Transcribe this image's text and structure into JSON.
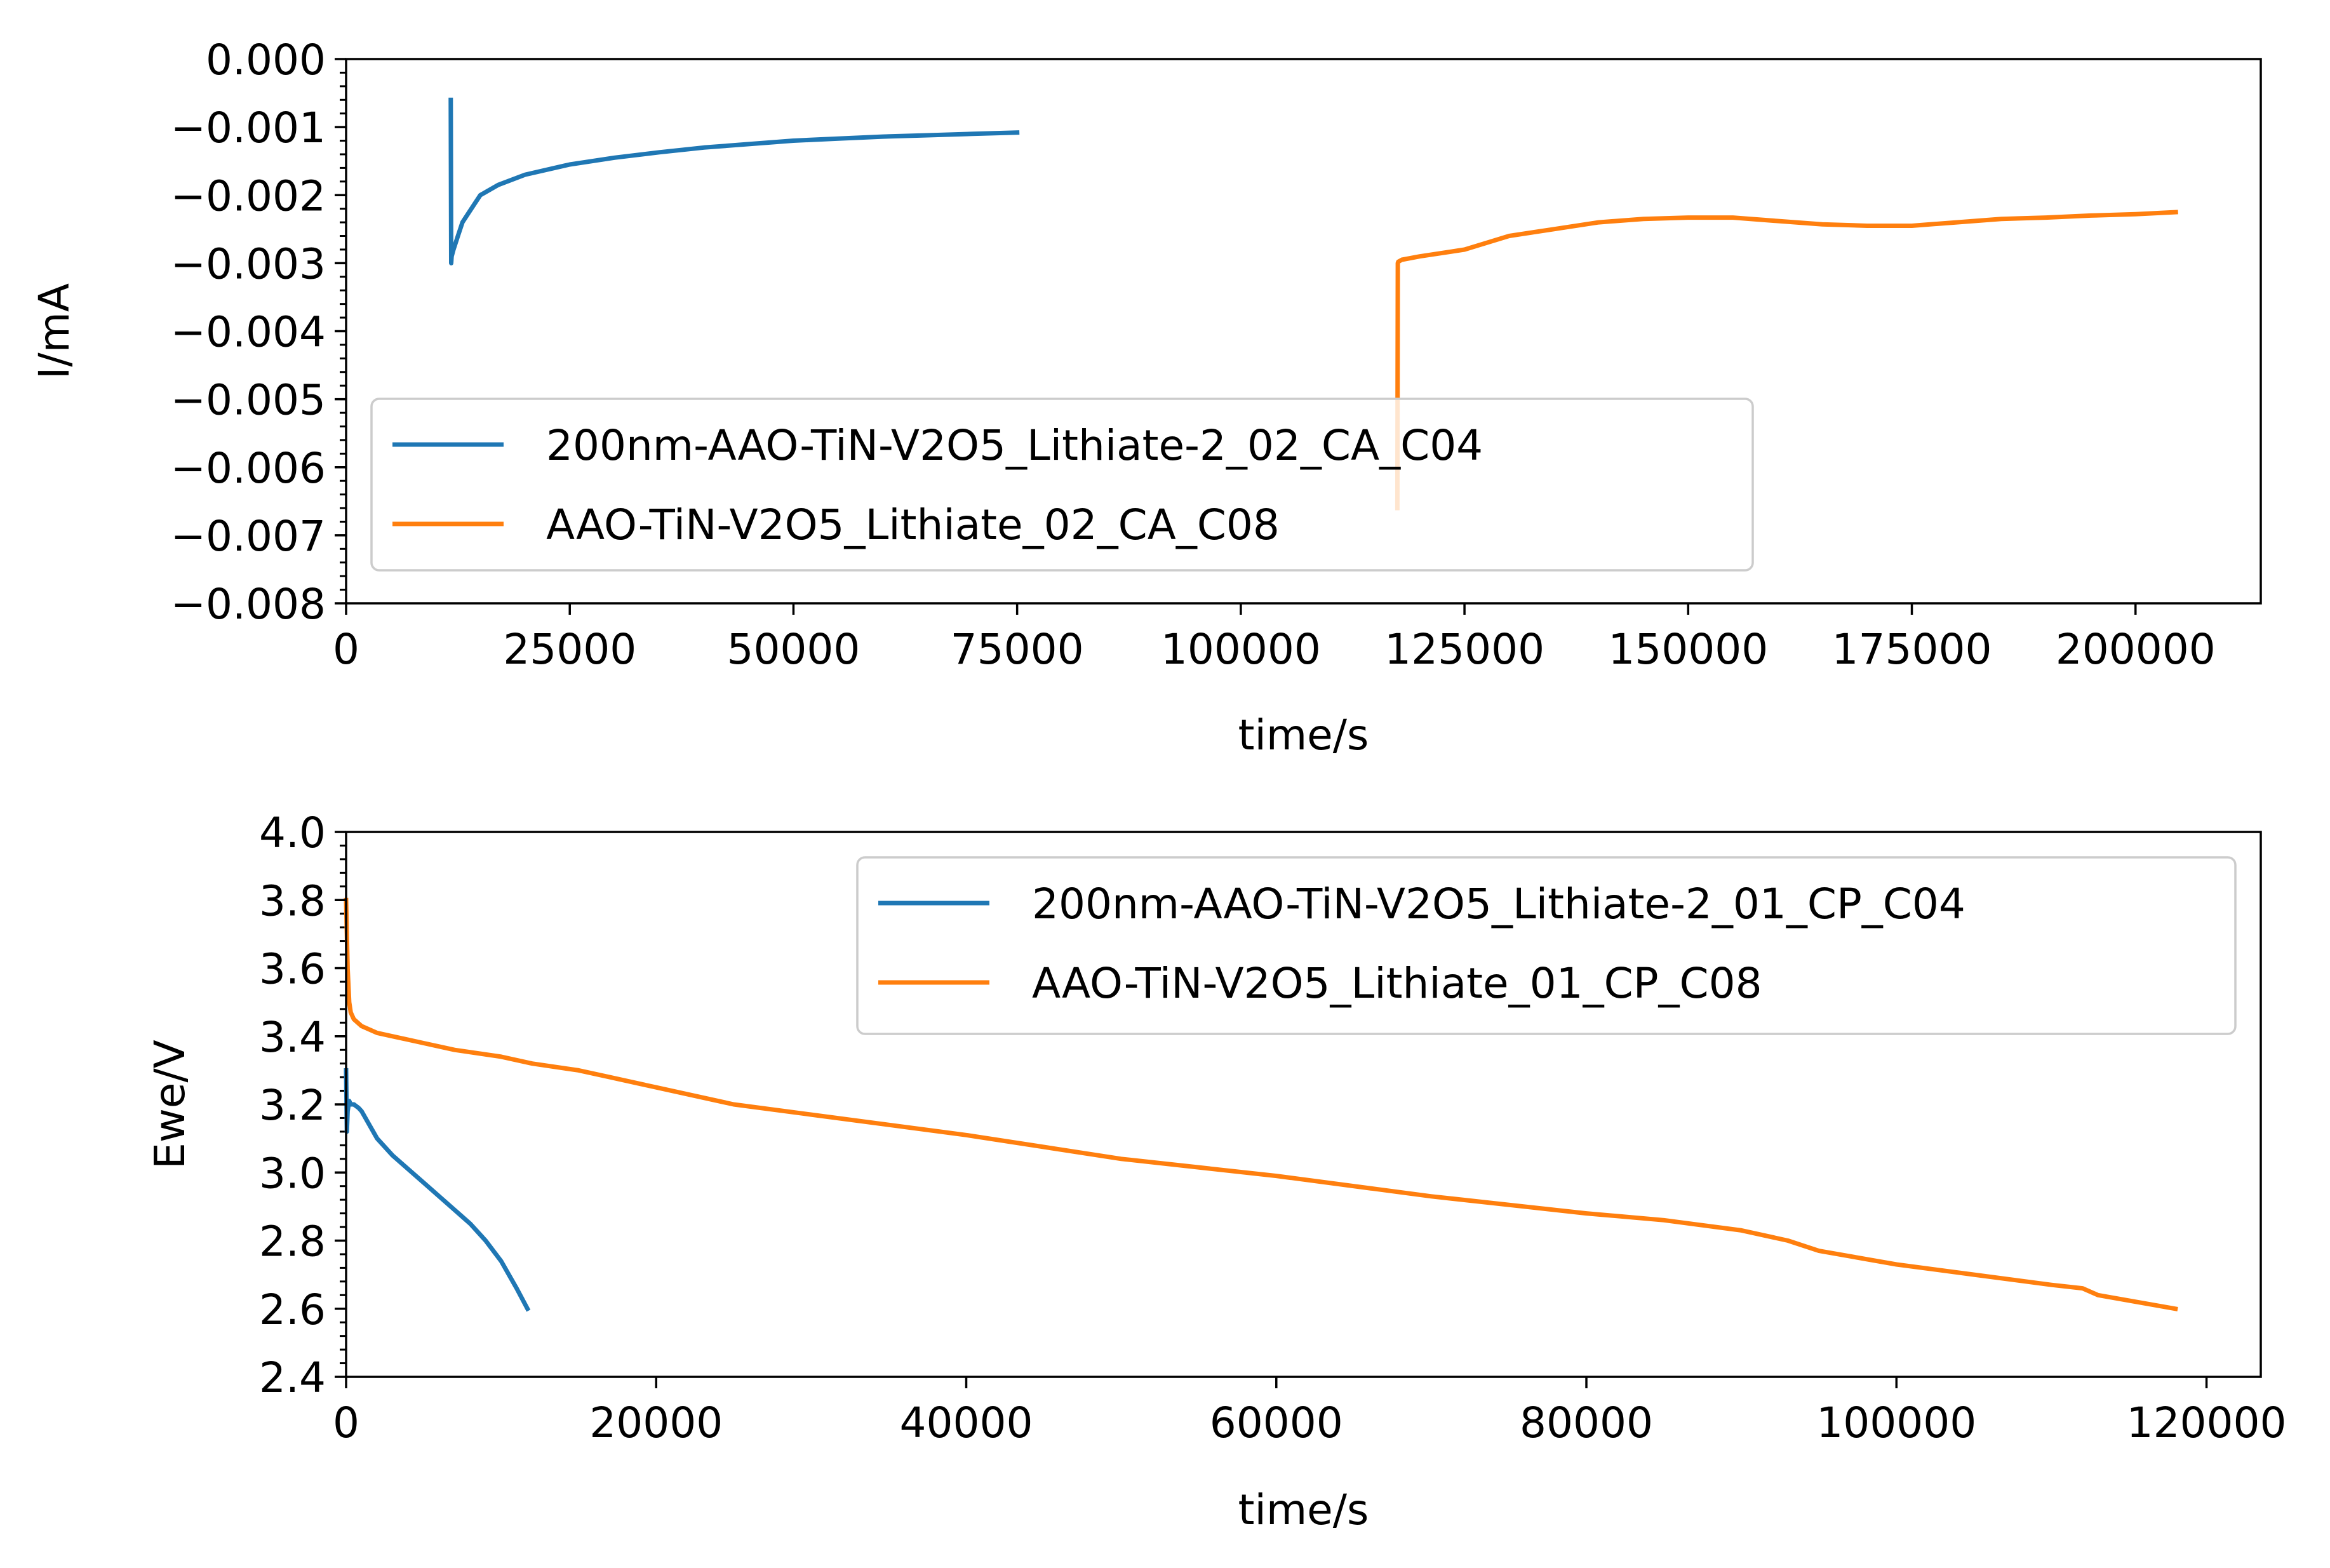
{
  "figure": {
    "colors": {
      "blue": "#1f77b4",
      "orange": "#ff7f0e",
      "axis": "#000000",
      "legend_border": "#cccccc"
    }
  },
  "chart_data": [
    {
      "type": "line",
      "xlabel": "time/s",
      "ylabel": "I/mA",
      "xlim": [
        0,
        214000
      ],
      "ylim": [
        -0.008,
        0.0
      ],
      "x_ticks": [
        0,
        25000,
        50000,
        75000,
        100000,
        125000,
        150000,
        175000,
        200000
      ],
      "x_tick_labels": [
        "0",
        "25000",
        "50000",
        "75000",
        "100000",
        "125000",
        "150000",
        "175000",
        "200000"
      ],
      "y_ticks": [
        0.0,
        -0.001,
        -0.002,
        -0.003,
        -0.004,
        -0.005,
        -0.006,
        -0.007,
        -0.008
      ],
      "y_tick_labels": [
        "0.000",
        "−0.001",
        "−0.002",
        "−0.003",
        "−0.004",
        "−0.005",
        "−0.006",
        "−0.007",
        "−0.008"
      ],
      "grid": false,
      "legend_position": "lower-left",
      "series": [
        {
          "name": "200nm-AAO-TiN-V2O5_Lithiate-2_02_CA_C04",
          "color": "#1f77b4",
          "x": [
            11700,
            11750,
            11800,
            12000,
            12500,
            13000,
            14000,
            15000,
            17000,
            20000,
            25000,
            30000,
            35000,
            40000,
            45000,
            50000,
            55000,
            60000,
            65000,
            70000,
            75000
          ],
          "y": [
            -0.0006,
            -0.003,
            -0.0029,
            -0.0028,
            -0.0026,
            -0.0024,
            -0.0022,
            -0.002,
            -0.00185,
            -0.0017,
            -0.00155,
            -0.00145,
            -0.00137,
            -0.0013,
            -0.00125,
            -0.0012,
            -0.00117,
            -0.00114,
            -0.00112,
            -0.0011,
            -0.00108
          ]
        },
        {
          "name": "AAO-TiN-V2O5_Lithiate_02_CA_C08",
          "color": "#ff7f0e",
          "x": [
            117500,
            117550,
            117600,
            118000,
            120000,
            125000,
            130000,
            135000,
            140000,
            145000,
            150000,
            155000,
            160000,
            165000,
            170000,
            175000,
            180000,
            185000,
            190000,
            195000,
            200000,
            204500
          ],
          "y": [
            -0.0066,
            -0.003,
            -0.00298,
            -0.00295,
            -0.0029,
            -0.0028,
            -0.0026,
            -0.0025,
            -0.0024,
            -0.00235,
            -0.00233,
            -0.00233,
            -0.00238,
            -0.00243,
            -0.00245,
            -0.00245,
            -0.0024,
            -0.00235,
            -0.00233,
            -0.0023,
            -0.00228,
            -0.00225
          ]
        }
      ]
    },
    {
      "type": "line",
      "xlabel": "time/s",
      "ylabel": "Ewe/V",
      "xlim": [
        0,
        123500
      ],
      "ylim": [
        2.4,
        4.0
      ],
      "x_ticks": [
        0,
        20000,
        40000,
        60000,
        80000,
        100000,
        120000
      ],
      "x_tick_labels": [
        "0",
        "20000",
        "40000",
        "60000",
        "80000",
        "100000",
        "120000"
      ],
      "y_ticks": [
        2.4,
        2.6,
        2.8,
        3.0,
        3.2,
        3.4,
        3.6,
        3.8,
        4.0
      ],
      "y_tick_labels": [
        "2.4",
        "2.6",
        "2.8",
        "3.0",
        "3.2",
        "3.4",
        "3.6",
        "3.8",
        "4.0"
      ],
      "grid": false,
      "legend_position": "upper-right",
      "series": [
        {
          "name": "200nm-AAO-TiN-V2O5_Lithiate-2_01_CP_C04",
          "color": "#1f77b4",
          "x": [
            0,
            50,
            100,
            200,
            300,
            500,
            800,
            1000,
            1500,
            2000,
            3000,
            4000,
            5000,
            6000,
            7000,
            8000,
            9000,
            10000,
            11000,
            11700
          ],
          "y": [
            3.3,
            3.12,
            3.18,
            3.21,
            3.2,
            3.2,
            3.19,
            3.18,
            3.14,
            3.1,
            3.05,
            3.01,
            2.97,
            2.93,
            2.89,
            2.85,
            2.8,
            2.74,
            2.66,
            2.6
          ]
        },
        {
          "name": "AAO-TiN-V2O5_Lithiate_01_CP_C08",
          "color": "#ff7f0e",
          "x": [
            0,
            50,
            100,
            200,
            300,
            500,
            1000,
            2000,
            3000,
            5000,
            7000,
            10000,
            12000,
            15000,
            17000,
            20000,
            25000,
            30000,
            40000,
            50000,
            60000,
            70000,
            80000,
            85000,
            90000,
            93000,
            95000,
            100000,
            105000,
            110000,
            112000,
            113000,
            118000
          ],
          "y": [
            3.8,
            3.7,
            3.6,
            3.5,
            3.47,
            3.45,
            3.43,
            3.41,
            3.4,
            3.38,
            3.36,
            3.34,
            3.32,
            3.3,
            3.28,
            3.25,
            3.2,
            3.17,
            3.11,
            3.04,
            2.99,
            2.93,
            2.88,
            2.86,
            2.83,
            2.8,
            2.77,
            2.73,
            2.7,
            2.67,
            2.66,
            2.64,
            2.6
          ]
        }
      ]
    }
  ]
}
